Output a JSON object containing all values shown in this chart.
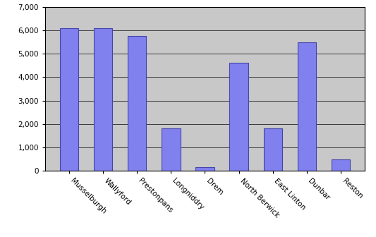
{
  "categories": [
    "Musselburgh",
    "Wallyford",
    "Prestonpans",
    "Longniddry",
    "Drem",
    "North Berwick",
    "East Linton",
    "Dunbar",
    "Reston"
  ],
  "values": [
    6100,
    6100,
    5750,
    1800,
    150,
    4620,
    1800,
    5500,
    480
  ],
  "bar_color": "#8080ee",
  "bar_edgecolor": "#4444aa",
  "ylim": [
    0,
    7000
  ],
  "yticks": [
    0,
    1000,
    2000,
    3000,
    4000,
    5000,
    6000,
    7000
  ],
  "plot_bg_color": "#c8c8c8",
  "fig_bg_color": "#ffffff",
  "grid_color": "#000000",
  "tick_label_fontsize": 7.5,
  "bar_width": 0.55,
  "figsize": [
    5.33,
    3.36
  ],
  "dpi": 100
}
